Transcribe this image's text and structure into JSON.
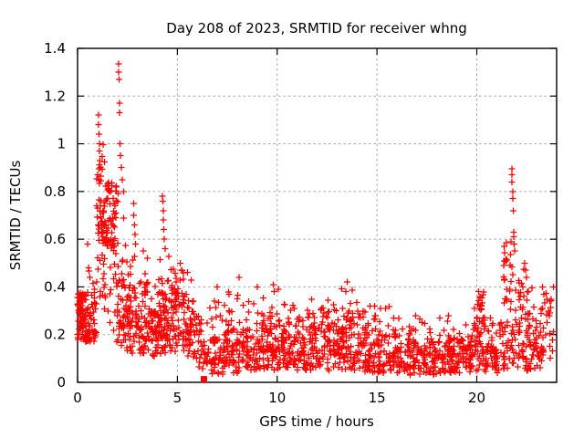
{
  "window": {
    "background": "#ffffff"
  },
  "chart_data": {
    "type": "scatter",
    "title": "Day 208 of 2023, SRMTID for receiver whng",
    "xlabel": "GPS time / hours",
    "ylabel": "SRMTID / TECUs",
    "xlim": [
      0,
      24
    ],
    "ylim": [
      0,
      1.4
    ],
    "xticks": [
      {
        "v": 0,
        "label": "0"
      },
      {
        "v": 5,
        "label": "5"
      },
      {
        "v": 10,
        "label": "10"
      },
      {
        "v": 15,
        "label": "15"
      },
      {
        "v": 20,
        "label": "20"
      }
    ],
    "yticks": [
      {
        "v": 0,
        "label": "0"
      },
      {
        "v": 0.2,
        "label": "0.2"
      },
      {
        "v": 0.4,
        "label": "0.4"
      },
      {
        "v": 0.6,
        "label": "0.6"
      },
      {
        "v": 0.8,
        "label": "0.8"
      },
      {
        "v": 1,
        "label": "1"
      },
      {
        "v": 1.2,
        "label": "1.2"
      },
      {
        "v": 1.4,
        "label": "1.4"
      }
    ],
    "grid": true,
    "grid_color": "#a6a6a6",
    "axis_color": "#000000",
    "marker": "plus",
    "marker_color": "#ff0000",
    "marker_size": 7,
    "peak_points": [
      [
        0.5,
        0.58
      ],
      [
        0.55,
        0.48
      ],
      [
        0.62,
        0.44
      ],
      [
        1.05,
        1.12
      ],
      [
        1.05,
        1.08
      ],
      [
        1.07,
        1.04
      ],
      [
        1.1,
        1.0
      ],
      [
        1.1,
        0.97
      ],
      [
        1.12,
        0.93
      ],
      [
        1.15,
        0.9
      ],
      [
        2.05,
        1.335
      ],
      [
        2.05,
        1.3
      ],
      [
        2.07,
        1.27
      ],
      [
        2.1,
        1.17
      ],
      [
        2.1,
        1.13
      ],
      [
        2.12,
        1.0
      ],
      [
        2.15,
        0.95
      ],
      [
        2.2,
        0.9
      ],
      [
        2.25,
        0.85
      ],
      [
        2.3,
        0.8
      ],
      [
        2.8,
        0.75
      ],
      [
        2.82,
        0.7
      ],
      [
        2.85,
        0.66
      ],
      [
        2.87,
        0.62
      ],
      [
        2.9,
        0.58
      ],
      [
        3.3,
        0.55
      ],
      [
        3.5,
        0.52
      ],
      [
        4.25,
        0.78
      ],
      [
        4.27,
        0.76
      ],
      [
        4.3,
        0.72
      ],
      [
        4.3,
        0.68
      ],
      [
        4.33,
        0.64
      ],
      [
        4.35,
        0.6
      ],
      [
        4.38,
        0.56
      ],
      [
        5.15,
        0.5
      ],
      [
        5.2,
        0.47
      ],
      [
        5.5,
        0.46
      ],
      [
        7.0,
        0.4
      ],
      [
        8.1,
        0.44
      ],
      [
        9.0,
        0.4
      ],
      [
        9.8,
        0.41
      ],
      [
        9.85,
        0.38
      ],
      [
        13.5,
        0.42
      ],
      [
        20.1,
        0.38
      ],
      [
        20.15,
        0.36
      ],
      [
        21.75,
        0.895
      ],
      [
        21.75,
        0.87
      ],
      [
        21.77,
        0.84
      ],
      [
        21.8,
        0.8
      ],
      [
        21.8,
        0.77
      ],
      [
        21.82,
        0.72
      ],
      [
        21.85,
        0.63
      ],
      [
        21.85,
        0.61
      ],
      [
        21.87,
        0.58
      ],
      [
        21.9,
        0.55
      ],
      [
        22.4,
        0.5
      ],
      [
        22.45,
        0.47
      ],
      [
        22.5,
        0.44
      ],
      [
        23.3,
        0.4
      ],
      [
        23.35,
        0.37
      ],
      [
        23.85,
        0.4
      ]
    ],
    "density_bands_columns": [
      "h0",
      "h1",
      "min",
      "dense_lo",
      "dense_hi",
      "max",
      "n"
    ],
    "density_bands": [
      [
        0.0,
        0.45,
        0.17,
        0.22,
        0.35,
        0.38,
        75
      ],
      [
        0.45,
        0.95,
        0.17,
        0.2,
        0.33,
        0.48,
        55
      ],
      [
        0.95,
        1.45,
        0.3,
        0.58,
        0.85,
        1.0,
        70
      ],
      [
        1.45,
        1.95,
        0.15,
        0.55,
        0.8,
        0.85,
        65
      ],
      [
        1.95,
        2.45,
        0.15,
        0.2,
        0.45,
        0.8,
        55
      ],
      [
        2.45,
        3.0,
        0.12,
        0.18,
        0.4,
        0.6,
        60
      ],
      [
        3.0,
        3.6,
        0.12,
        0.15,
        0.35,
        0.5,
        60
      ],
      [
        3.6,
        4.1,
        0.1,
        0.15,
        0.3,
        0.45,
        50
      ],
      [
        4.1,
        4.6,
        0.12,
        0.18,
        0.38,
        0.55,
        60
      ],
      [
        4.6,
        5.4,
        0.1,
        0.18,
        0.4,
        0.48,
        75
      ],
      [
        5.4,
        6.0,
        0.08,
        0.15,
        0.3,
        0.44,
        50
      ],
      [
        6.0,
        6.6,
        0.04,
        0.08,
        0.22,
        0.3,
        35
      ],
      [
        6.6,
        7.4,
        0.03,
        0.06,
        0.2,
        0.36,
        65
      ],
      [
        7.4,
        8.4,
        0.04,
        0.08,
        0.22,
        0.4,
        80
      ],
      [
        8.4,
        9.4,
        0.05,
        0.08,
        0.25,
        0.4,
        80
      ],
      [
        9.4,
        10.2,
        0.05,
        0.1,
        0.28,
        0.4,
        70
      ],
      [
        10.2,
        11.2,
        0.05,
        0.08,
        0.22,
        0.33,
        80
      ],
      [
        11.2,
        12.2,
        0.05,
        0.1,
        0.25,
        0.36,
        80
      ],
      [
        12.2,
        13.2,
        0.05,
        0.08,
        0.25,
        0.36,
        80
      ],
      [
        13.2,
        14.0,
        0.05,
        0.1,
        0.28,
        0.4,
        70
      ],
      [
        14.0,
        15.0,
        0.04,
        0.08,
        0.22,
        0.34,
        80
      ],
      [
        15.0,
        16.0,
        0.04,
        0.07,
        0.2,
        0.32,
        75
      ],
      [
        16.0,
        17.0,
        0.03,
        0.06,
        0.18,
        0.28,
        75
      ],
      [
        17.0,
        18.0,
        0.03,
        0.05,
        0.17,
        0.3,
        70
      ],
      [
        18.0,
        19.0,
        0.04,
        0.06,
        0.18,
        0.28,
        75
      ],
      [
        19.0,
        19.8,
        0.04,
        0.06,
        0.18,
        0.26,
        60
      ],
      [
        19.8,
        20.4,
        0.05,
        0.1,
        0.3,
        0.38,
        55
      ],
      [
        20.4,
        21.3,
        0.04,
        0.07,
        0.2,
        0.28,
        65
      ],
      [
        21.3,
        21.9,
        0.05,
        0.12,
        0.45,
        0.6,
        60
      ],
      [
        21.9,
        22.6,
        0.05,
        0.1,
        0.35,
        0.5,
        60
      ],
      [
        22.6,
        23.3,
        0.05,
        0.08,
        0.28,
        0.4,
        50
      ],
      [
        23.3,
        23.9,
        0.1,
        0.15,
        0.3,
        0.4,
        25
      ]
    ],
    "special_points": [
      {
        "x": 6.33,
        "y": 0.013,
        "marker": "filled-square",
        "color": "#ff0000",
        "size": 7
      }
    ]
  }
}
